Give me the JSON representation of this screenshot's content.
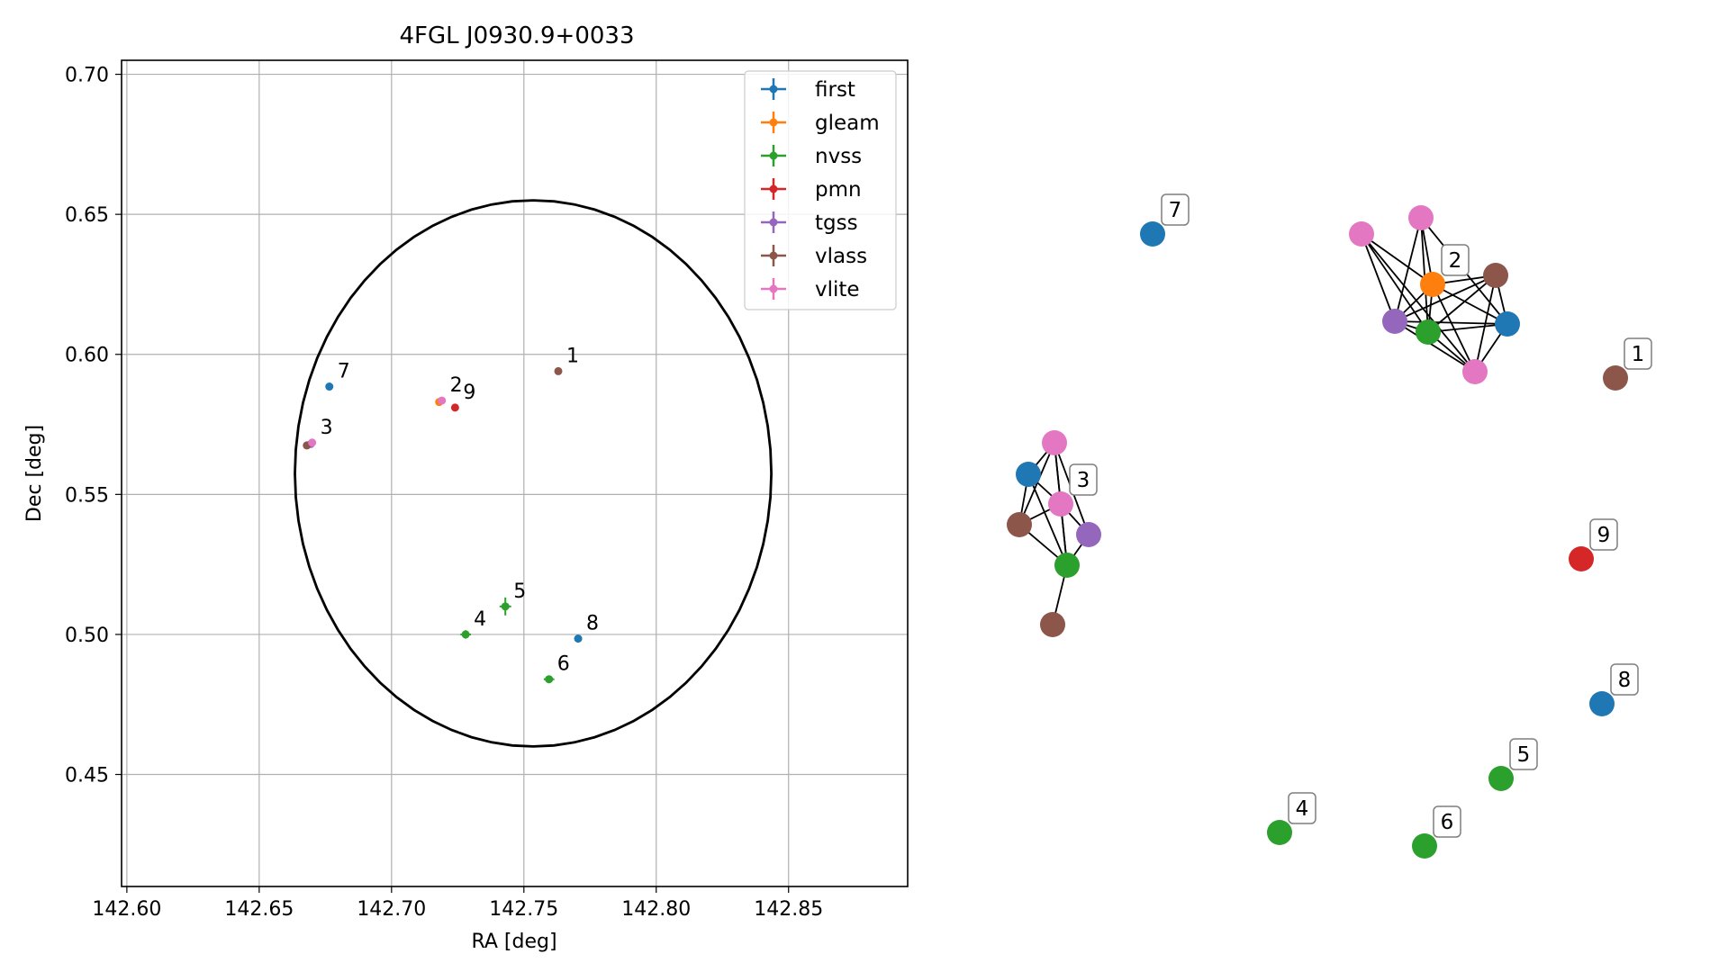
{
  "chart_data": [
    {
      "type": "scatter",
      "title": "4FGL J0930.9+0033",
      "xlabel": "RA [deg]",
      "ylabel": "Dec [deg]",
      "xlim": [
        142.598,
        142.895
      ],
      "ylim": [
        0.41,
        0.705
      ],
      "xticks": [
        142.6,
        142.65,
        142.7,
        142.75,
        142.8,
        142.85
      ],
      "xtick_labels": [
        "142.60",
        "142.65",
        "142.70",
        "142.75",
        "142.80",
        "142.85"
      ],
      "yticks": [
        0.45,
        0.5,
        0.55,
        0.6,
        0.65,
        0.7
      ],
      "ytick_labels": [
        "0.45",
        "0.50",
        "0.55",
        "0.60",
        "0.65",
        "0.70"
      ],
      "grid": true,
      "legend_position": "top-right",
      "ellipse": {
        "center_ra": 142.7535,
        "center_dec": 0.5575,
        "semi_ra": 0.09,
        "semi_dec": 0.0975,
        "color": "#000000"
      },
      "series": [
        {
          "name": "first",
          "color": "#1f77b4",
          "points": [
            {
              "ra": 142.6765,
              "dec": 0.5885,
              "label": "7"
            },
            {
              "ra": 142.7705,
              "dec": 0.4985,
              "label": "8"
            }
          ]
        },
        {
          "name": "gleam",
          "color": "#ff7f0e",
          "points": [
            {
              "ra": 142.718,
              "dec": 0.583
            }
          ]
        },
        {
          "name": "nvss",
          "color": "#2ca02c",
          "points": [
            {
              "ra": 142.728,
              "dec": 0.5,
              "label": "4",
              "xerr": 0.002,
              "yerr": 0.0015
            },
            {
              "ra": 142.743,
              "dec": 0.51,
              "label": "5",
              "xerr": 0.0022,
              "yerr": 0.0032
            },
            {
              "ra": 142.7595,
              "dec": 0.484,
              "label": "6",
              "xerr": 0.002,
              "yerr": 0.001
            }
          ]
        },
        {
          "name": "pmn",
          "color": "#d62728",
          "points": [
            {
              "ra": 142.724,
              "dec": 0.581,
              "label": "9"
            }
          ]
        },
        {
          "name": "tgss",
          "color": "#9467bd",
          "points": [
            {
              "ra": 142.6695,
              "dec": 0.568
            }
          ]
        },
        {
          "name": "vlass",
          "color": "#8c564b",
          "points": [
            {
              "ra": 142.763,
              "dec": 0.594,
              "label": "1"
            },
            {
              "ra": 142.668,
              "dec": 0.5675
            }
          ]
        },
        {
          "name": "vlite",
          "color": "#e377c2",
          "points": [
            {
              "ra": 142.719,
              "dec": 0.5835,
              "label": "2"
            },
            {
              "ra": 142.67,
              "dec": 0.5685,
              "label": "3"
            }
          ]
        }
      ]
    },
    {
      "type": "network",
      "nodes": [
        {
          "id": "n7",
          "color": "#1f77b4",
          "label": "7"
        },
        {
          "id": "g2a",
          "color": "#e377c2"
        },
        {
          "id": "g2b",
          "color": "#e377c2"
        },
        {
          "id": "g2c",
          "color": "#ff7f0e",
          "label": "2"
        },
        {
          "id": "g2d",
          "color": "#8c564b"
        },
        {
          "id": "g2e",
          "color": "#9467bd"
        },
        {
          "id": "g2f",
          "color": "#2ca02c"
        },
        {
          "id": "g2g",
          "color": "#1f77b4"
        },
        {
          "id": "g2h",
          "color": "#e377c2"
        },
        {
          "id": "n1",
          "color": "#8c564b",
          "label": "1"
        },
        {
          "id": "g3a",
          "color": "#e377c2"
        },
        {
          "id": "g3b",
          "color": "#1f77b4"
        },
        {
          "id": "g3c",
          "color": "#e377c2",
          "label": "3"
        },
        {
          "id": "g3d",
          "color": "#8c564b"
        },
        {
          "id": "g3e",
          "color": "#9467bd"
        },
        {
          "id": "g3f",
          "color": "#2ca02c"
        },
        {
          "id": "g3g",
          "color": "#8c564b"
        },
        {
          "id": "n9",
          "color": "#d62728",
          "label": "9"
        },
        {
          "id": "n8",
          "color": "#1f77b4",
          "label": "8"
        },
        {
          "id": "n5",
          "color": "#2ca02c",
          "label": "5"
        },
        {
          "id": "n4",
          "color": "#2ca02c",
          "label": "4"
        },
        {
          "id": "n6",
          "color": "#2ca02c",
          "label": "6"
        }
      ],
      "edges": [
        [
          "g2a",
          "g2c"
        ],
        [
          "g2a",
          "g2e"
        ],
        [
          "g2a",
          "g2f"
        ],
        [
          "g2a",
          "g2h"
        ],
        [
          "g2b",
          "g2c"
        ],
        [
          "g2b",
          "g2e"
        ],
        [
          "g2b",
          "g2f"
        ],
        [
          "g2b",
          "g2g"
        ],
        [
          "g2c",
          "g2d"
        ],
        [
          "g2c",
          "g2e"
        ],
        [
          "g2c",
          "g2f"
        ],
        [
          "g2c",
          "g2g"
        ],
        [
          "g2c",
          "g2h"
        ],
        [
          "g2d",
          "g2e"
        ],
        [
          "g2d",
          "g2f"
        ],
        [
          "g2d",
          "g2g"
        ],
        [
          "g2d",
          "g2h"
        ],
        [
          "g2e",
          "g2f"
        ],
        [
          "g2e",
          "g2g"
        ],
        [
          "g2e",
          "g2h"
        ],
        [
          "g2f",
          "g2g"
        ],
        [
          "g2f",
          "g2h"
        ],
        [
          "g2g",
          "g2h"
        ],
        [
          "g3a",
          "g3b"
        ],
        [
          "g3a",
          "g3c"
        ],
        [
          "g3a",
          "g3d"
        ],
        [
          "g3a",
          "g3e"
        ],
        [
          "g3a",
          "g3f"
        ],
        [
          "g3b",
          "g3c"
        ],
        [
          "g3b",
          "g3d"
        ],
        [
          "g3b",
          "g3f"
        ],
        [
          "g3c",
          "g3d"
        ],
        [
          "g3c",
          "g3e"
        ],
        [
          "g3c",
          "g3f"
        ],
        [
          "g3d",
          "g3f"
        ],
        [
          "g3e",
          "g3f"
        ],
        [
          "g3f",
          "g3g"
        ]
      ]
    }
  ]
}
